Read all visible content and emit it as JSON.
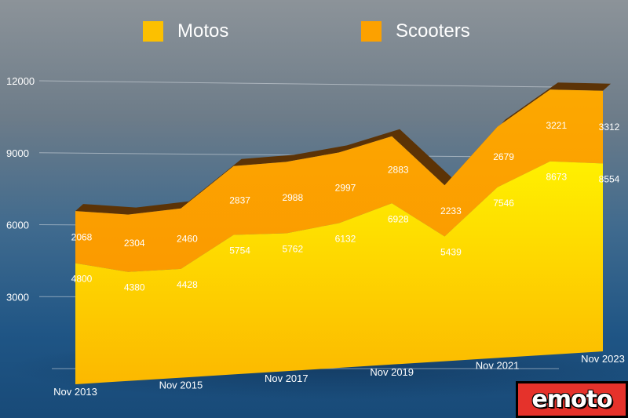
{
  "chart_data": {
    "type": "area",
    "stacked": true,
    "categories": [
      "Nov 2013",
      "Nov 2014",
      "Nov 2015",
      "Nov 2016",
      "Nov 2017",
      "Nov 2018",
      "Nov 2019",
      "Nov 2020",
      "Nov 2021",
      "Nov 2022",
      "Nov 2023"
    ],
    "x_tick_labels": [
      "Nov 2013",
      "Nov 2015",
      "Nov 2017",
      "Nov 2019",
      "Nov 2021",
      "Nov 2023"
    ],
    "series": [
      {
        "name": "Motos",
        "color": "#fcc000",
        "values": [
          4800,
          4380,
          4428,
          5754,
          5762,
          6132,
          6928,
          5439,
          7546,
          8673,
          8554
        ]
      },
      {
        "name": "Scooters",
        "color": "#fca100",
        "values": [
          2068,
          2304,
          2460,
          2837,
          2988,
          2997,
          2883,
          2233,
          2679,
          3221,
          3312
        ]
      }
    ],
    "ylim": [
      0,
      12000
    ],
    "y_ticks": [
      3000,
      6000,
      9000,
      12000
    ],
    "grid": true,
    "legend_position": "top",
    "perspective": "3d"
  },
  "logo": {
    "text": "emoto"
  }
}
